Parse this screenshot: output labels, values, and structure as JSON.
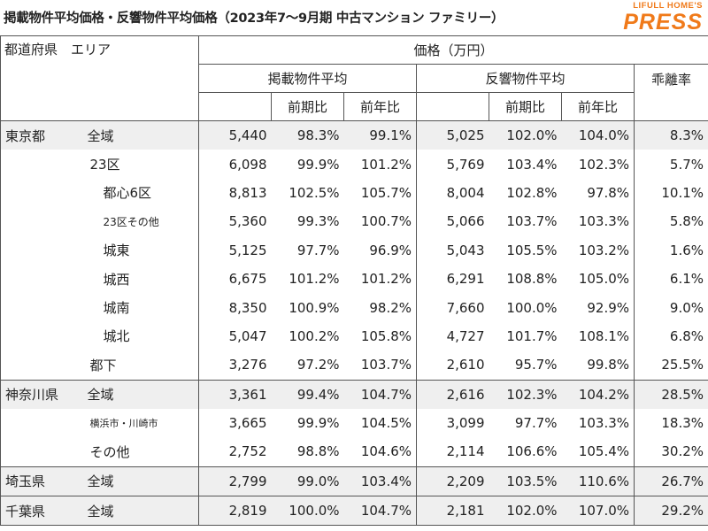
{
  "title": "掲載物件平均価格・反響物件平均価格（2023年7〜9月期 中古マンション ファミリー）",
  "logo": {
    "top": "LIFULL HOME'S",
    "main": "PRESS"
  },
  "headers": {
    "pref_area": "都道府県　エリア",
    "price": "価格（万円）",
    "listing_avg": "掲載物件平均",
    "response_avg": "反響物件平均",
    "divergence": "乖離率",
    "qoq": "前期比",
    "yoy": "前年比"
  },
  "rows": [
    {
      "pref": "東京都",
      "area": "全域",
      "level": 1,
      "l_price": "5,440",
      "l_qoq": "98.3%",
      "l_yoy": "99.1%",
      "r_price": "5,025",
      "r_qoq": "102.0%",
      "r_yoy": "104.0%",
      "div": "8.3%"
    },
    {
      "pref": "",
      "area": "23区",
      "level": 2,
      "l_price": "6,098",
      "l_qoq": "99.9%",
      "l_yoy": "101.2%",
      "r_price": "5,769",
      "r_qoq": "103.4%",
      "r_yoy": "102.3%",
      "div": "5.7%"
    },
    {
      "pref": "",
      "area": "都心6区",
      "level": 3,
      "l_price": "8,813",
      "l_qoq": "102.5%",
      "l_yoy": "105.7%",
      "r_price": "8,004",
      "r_qoq": "102.8%",
      "r_yoy": "97.8%",
      "div": "10.1%"
    },
    {
      "pref": "",
      "area": "23区その他",
      "level": 3,
      "size": "small",
      "l_price": "5,360",
      "l_qoq": "99.3%",
      "l_yoy": "100.7%",
      "r_price": "5,066",
      "r_qoq": "103.7%",
      "r_yoy": "103.3%",
      "div": "5.8%"
    },
    {
      "pref": "",
      "area": "城東",
      "level": 3,
      "l_price": "5,125",
      "l_qoq": "97.7%",
      "l_yoy": "96.9%",
      "r_price": "5,043",
      "r_qoq": "105.5%",
      "r_yoy": "103.2%",
      "div": "1.6%"
    },
    {
      "pref": "",
      "area": "城西",
      "level": 3,
      "l_price": "6,675",
      "l_qoq": "101.2%",
      "l_yoy": "101.2%",
      "r_price": "6,291",
      "r_qoq": "108.8%",
      "r_yoy": "105.0%",
      "div": "6.1%"
    },
    {
      "pref": "",
      "area": "城南",
      "level": 3,
      "l_price": "8,350",
      "l_qoq": "100.9%",
      "l_yoy": "98.2%",
      "r_price": "7,660",
      "r_qoq": "100.0%",
      "r_yoy": "92.9%",
      "div": "9.0%"
    },
    {
      "pref": "",
      "area": "城北",
      "level": 3,
      "l_price": "5,047",
      "l_qoq": "100.2%",
      "l_yoy": "105.8%",
      "r_price": "4,727",
      "r_qoq": "101.7%",
      "r_yoy": "108.1%",
      "div": "6.8%"
    },
    {
      "pref": "",
      "area": "都下",
      "level": 2,
      "l_price": "3,276",
      "l_qoq": "97.2%",
      "l_yoy": "103.7%",
      "r_price": "2,610",
      "r_qoq": "95.7%",
      "r_yoy": "99.8%",
      "div": "25.5%"
    },
    {
      "pref": "神奈川県",
      "area": "全域",
      "level": 1,
      "group_start": true,
      "l_price": "3,361",
      "l_qoq": "99.4%",
      "l_yoy": "104.7%",
      "r_price": "2,616",
      "r_qoq": "102.3%",
      "r_yoy": "104.2%",
      "div": "28.5%"
    },
    {
      "pref": "",
      "area": "横浜市・川崎市",
      "level": 2,
      "size": "xsmall",
      "l_price": "3,665",
      "l_qoq": "99.9%",
      "l_yoy": "104.5%",
      "r_price": "3,099",
      "r_qoq": "97.7%",
      "r_yoy": "103.3%",
      "div": "18.3%"
    },
    {
      "pref": "",
      "area": "その他",
      "level": 2,
      "l_price": "2,752",
      "l_qoq": "98.8%",
      "l_yoy": "104.6%",
      "r_price": "2,114",
      "r_qoq": "106.6%",
      "r_yoy": "105.4%",
      "div": "30.2%"
    },
    {
      "pref": "埼玉県",
      "area": "全域",
      "level": 1,
      "group_start": true,
      "l_price": "2,799",
      "l_qoq": "99.0%",
      "l_yoy": "103.4%",
      "r_price": "2,209",
      "r_qoq": "103.5%",
      "r_yoy": "110.6%",
      "div": "26.7%"
    },
    {
      "pref": "千葉県",
      "area": "全域",
      "level": 1,
      "group_start": true,
      "l_price": "2,819",
      "l_qoq": "100.0%",
      "l_yoy": "104.7%",
      "r_price": "2,181",
      "r_qoq": "102.0%",
      "r_yoy": "107.0%",
      "div": "29.2%"
    }
  ]
}
